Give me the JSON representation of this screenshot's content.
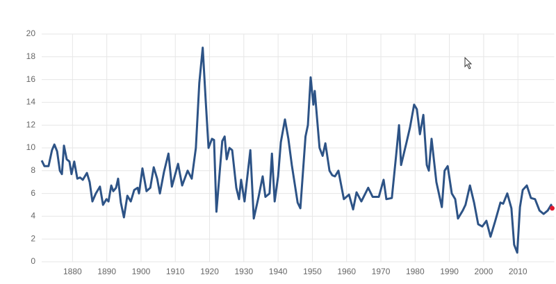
{
  "chart_data": {
    "type": "line",
    "x": [
      1871.0,
      1871.8,
      1873.0,
      1874.0,
      1874.7,
      1875.5,
      1876.3,
      1876.9,
      1877.5,
      1878.3,
      1879.1,
      1879.7,
      1880.5,
      1881.4,
      1882.2,
      1883.0,
      1884.2,
      1885.0,
      1885.8,
      1886.8,
      1888.0,
      1888.9,
      1889.9,
      1890.5,
      1891.3,
      1891.9,
      1892.7,
      1893.3,
      1894.1,
      1895.0,
      1896.0,
      1897.0,
      1898.0,
      1899.0,
      1899.4,
      1900.4,
      1901.6,
      1902.7,
      1903.7,
      1904.7,
      1905.5,
      1906.7,
      1908.0,
      1909.0,
      1910.8,
      1912.0,
      1913.6,
      1914.8,
      1916.0,
      1917.0,
      1918.0,
      1918.9,
      1919.7,
      1920.7,
      1921.3,
      1922.0,
      1923.7,
      1924.4,
      1925.0,
      1925.8,
      1926.6,
      1927.8,
      1928.6,
      1929.2,
      1930.2,
      1931.9,
      1932.9,
      1934.3,
      1935.5,
      1936.3,
      1937.5,
      1938.2,
      1939.0,
      1940.0,
      1940.8,
      1942.0,
      1943.0,
      1944.0,
      1945.7,
      1946.5,
      1948.0,
      1948.7,
      1949.5,
      1950.3,
      1950.7,
      1952.1,
      1953.0,
      1953.8,
      1955.0,
      1955.8,
      1956.6,
      1957.6,
      1959.2,
      1960.7,
      1961.9,
      1962.9,
      1964.3,
      1966.3,
      1967.6,
      1969.4,
      1970.8,
      1971.6,
      1973.2,
      1974.5,
      1975.3,
      1975.9,
      1977.5,
      1978.5,
      1979.7,
      1980.5,
      1981.4,
      1982.4,
      1983.4,
      1984.0,
      1984.8,
      1986.2,
      1987.8,
      1988.6,
      1989.5,
      1990.7,
      1991.7,
      1992.5,
      1993.9,
      1994.7,
      1996.0,
      1997.2,
      1998.4,
      1999.6,
      2000.8,
      2002.0,
      2003.3,
      2004.9,
      2005.7,
      2006.9,
      2008.1,
      2008.9,
      2009.8,
      2010.6,
      2011.4,
      2012.6,
      2013.8,
      2015.0,
      2016.3,
      2017.5,
      2018.7,
      2019.7,
      2020.0
    ],
    "series": [
      {
        "color": "#2d5386",
        "values": [
          8.9,
          8.4,
          8.4,
          9.8,
          10.3,
          9.7,
          8.0,
          7.7,
          10.2,
          9.0,
          8.8,
          7.7,
          8.8,
          7.3,
          7.4,
          7.2,
          7.8,
          7.0,
          5.3,
          6.0,
          6.6,
          5.0,
          5.5,
          5.3,
          6.7,
          6.2,
          6.5,
          7.3,
          5.2,
          3.9,
          5.8,
          5.3,
          6.3,
          6.5,
          6.0,
          8.2,
          6.2,
          6.5,
          8.3,
          7.3,
          6.0,
          7.9,
          9.5,
          6.6,
          8.6,
          6.7,
          8.0,
          7.3,
          10.0,
          15.7,
          18.8,
          14.0,
          10.0,
          10.8,
          10.7,
          4.4,
          10.6,
          11.0,
          9.0,
          10.0,
          9.8,
          6.5,
          5.5,
          7.2,
          5.3,
          9.8,
          3.8,
          5.7,
          7.5,
          5.7,
          6.0,
          9.5,
          5.3,
          7.5,
          10.5,
          12.5,
          10.8,
          8.5,
          5.2,
          4.7,
          11.0,
          12.0,
          16.2,
          13.8,
          15.0,
          10.0,
          9.3,
          10.4,
          8.0,
          7.6,
          7.5,
          8.0,
          5.5,
          5.9,
          4.6,
          6.1,
          5.3,
          6.5,
          5.7,
          5.7,
          7.2,
          5.5,
          5.6,
          9.5,
          12.0,
          8.5,
          10.5,
          11.8,
          13.8,
          13.4,
          11.2,
          12.9,
          8.5,
          8.0,
          10.8,
          7.0,
          4.8,
          8.0,
          8.4,
          6.0,
          5.5,
          3.8,
          4.5,
          5.0,
          6.7,
          5.2,
          3.3,
          3.1,
          3.6,
          2.2,
          3.5,
          5.2,
          5.1,
          6.0,
          4.7,
          1.5,
          0.8,
          4.8,
          6.3,
          6.7,
          5.6,
          5.5,
          4.5,
          4.2,
          4.5,
          5.0,
          4.7
        ]
      }
    ],
    "last_point_color": "#e0182d",
    "xlim": [
      1871,
      2020
    ],
    "xticks": [
      1880,
      1890,
      1900,
      1910,
      1920,
      1930,
      1940,
      1950,
      1960,
      1970,
      1980,
      1990,
      2000,
      2010
    ],
    "ylim": [
      0,
      20
    ],
    "yticks": [
      0,
      2,
      4,
      6,
      8,
      10,
      12,
      14,
      16,
      18,
      20
    ],
    "grid": true
  }
}
